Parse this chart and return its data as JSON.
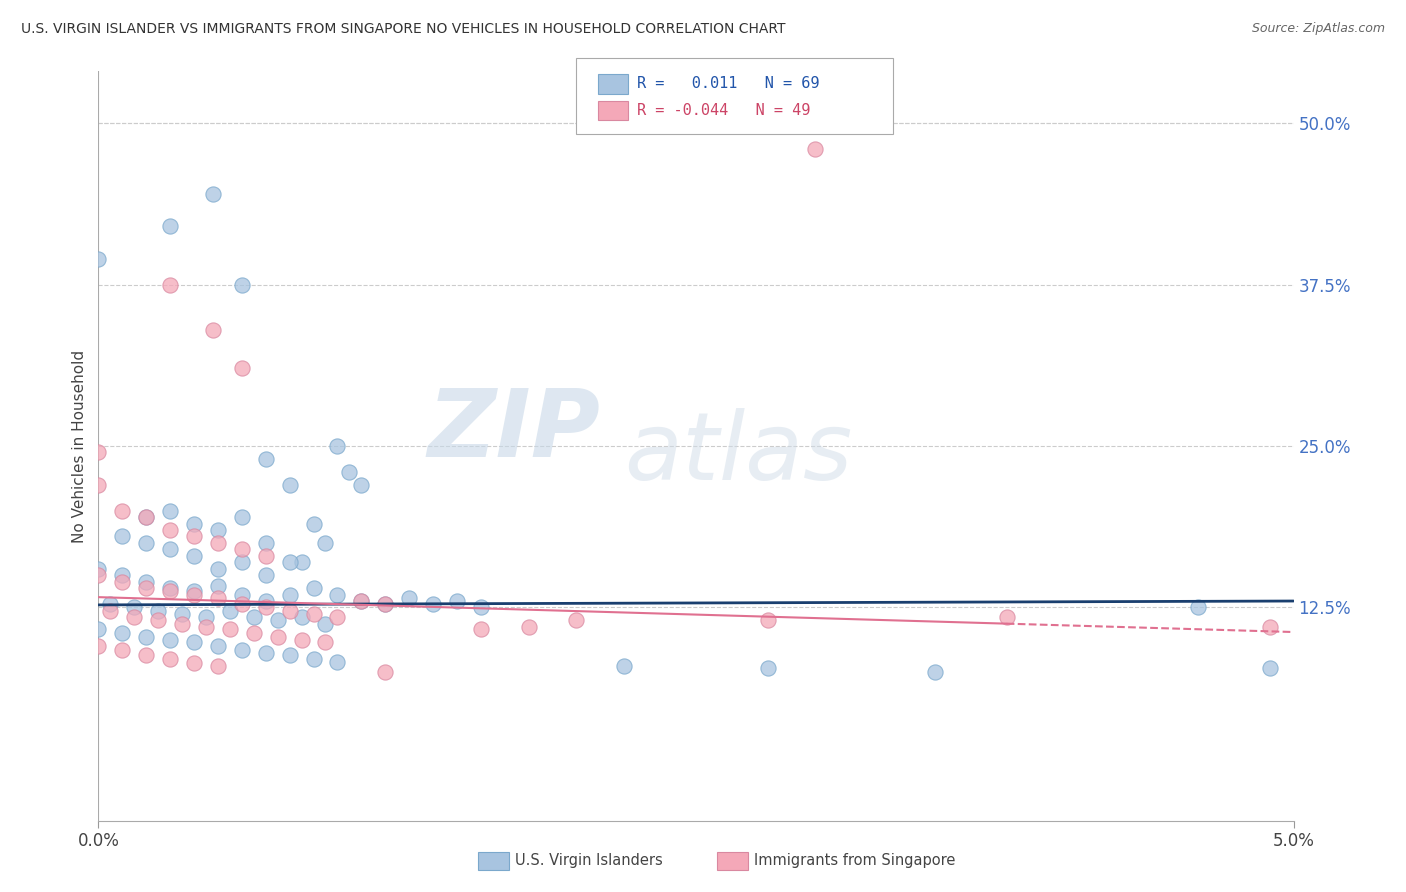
{
  "title": "U.S. VIRGIN ISLANDER VS IMMIGRANTS FROM SINGAPORE NO VEHICLES IN HOUSEHOLD CORRELATION CHART",
  "source": "Source: ZipAtlas.com",
  "ylabel": "No Vehicles in Household",
  "ytick_labels": [
    "12.5%",
    "25.0%",
    "37.5%",
    "50.0%"
  ],
  "ytick_values": [
    0.125,
    0.25,
    0.375,
    0.5
  ],
  "xmin": 0.0,
  "xmax": 0.05,
  "ymin": -0.04,
  "ymax": 0.54,
  "legend_label_blue": "U.S. Virgin Islanders",
  "legend_label_pink": "Immigrants from Singapore",
  "r_blue": 0.011,
  "n_blue": 69,
  "r_pink": -0.044,
  "n_pink": 49,
  "blue_color": "#a8c4e0",
  "pink_color": "#f4a8b8",
  "line_blue_color": "#1a3f6f",
  "line_pink_color": "#e07090",
  "watermark_zip": "ZIP",
  "watermark_atlas": "atlas",
  "blue_line_y0": 0.127,
  "blue_line_y1": 0.13,
  "pink_line_y0": 0.133,
  "pink_line_y1": 0.106,
  "blue_scatter": [
    [
      0.0,
      0.395
    ],
    [
      0.003,
      0.42
    ],
    [
      0.0048,
      0.445
    ],
    [
      0.007,
      0.24
    ],
    [
      0.006,
      0.375
    ],
    [
      0.008,
      0.22
    ],
    [
      0.009,
      0.19
    ],
    [
      0.01,
      0.25
    ],
    [
      0.0085,
      0.16
    ],
    [
      0.0095,
      0.175
    ],
    [
      0.0105,
      0.23
    ],
    [
      0.011,
      0.22
    ],
    [
      0.002,
      0.195
    ],
    [
      0.003,
      0.2
    ],
    [
      0.004,
      0.19
    ],
    [
      0.005,
      0.185
    ],
    [
      0.006,
      0.195
    ],
    [
      0.007,
      0.175
    ],
    [
      0.008,
      0.16
    ],
    [
      0.001,
      0.18
    ],
    [
      0.002,
      0.175
    ],
    [
      0.003,
      0.17
    ],
    [
      0.004,
      0.165
    ],
    [
      0.005,
      0.155
    ],
    [
      0.006,
      0.16
    ],
    [
      0.007,
      0.15
    ],
    [
      0.0,
      0.155
    ],
    [
      0.001,
      0.15
    ],
    [
      0.002,
      0.145
    ],
    [
      0.003,
      0.14
    ],
    [
      0.004,
      0.138
    ],
    [
      0.005,
      0.142
    ],
    [
      0.006,
      0.135
    ],
    [
      0.007,
      0.13
    ],
    [
      0.008,
      0.135
    ],
    [
      0.009,
      0.14
    ],
    [
      0.01,
      0.135
    ],
    [
      0.011,
      0.13
    ],
    [
      0.012,
      0.128
    ],
    [
      0.013,
      0.132
    ],
    [
      0.014,
      0.128
    ],
    [
      0.015,
      0.13
    ],
    [
      0.016,
      0.125
    ],
    [
      0.0005,
      0.128
    ],
    [
      0.0015,
      0.125
    ],
    [
      0.0025,
      0.122
    ],
    [
      0.0035,
      0.12
    ],
    [
      0.0045,
      0.118
    ],
    [
      0.0055,
      0.122
    ],
    [
      0.0065,
      0.118
    ],
    [
      0.0075,
      0.115
    ],
    [
      0.0085,
      0.118
    ],
    [
      0.0095,
      0.112
    ],
    [
      0.0,
      0.108
    ],
    [
      0.001,
      0.105
    ],
    [
      0.002,
      0.102
    ],
    [
      0.003,
      0.1
    ],
    [
      0.004,
      0.098
    ],
    [
      0.005,
      0.095
    ],
    [
      0.006,
      0.092
    ],
    [
      0.007,
      0.09
    ],
    [
      0.008,
      0.088
    ],
    [
      0.009,
      0.085
    ],
    [
      0.01,
      0.083
    ],
    [
      0.022,
      0.08
    ],
    [
      0.028,
      0.078
    ],
    [
      0.035,
      0.075
    ],
    [
      0.046,
      0.125
    ],
    [
      0.049,
      0.078
    ]
  ],
  "pink_scatter": [
    [
      0.0,
      0.245
    ],
    [
      0.003,
      0.375
    ],
    [
      0.0048,
      0.34
    ],
    [
      0.006,
      0.31
    ],
    [
      0.0,
      0.22
    ],
    [
      0.001,
      0.2
    ],
    [
      0.002,
      0.195
    ],
    [
      0.003,
      0.185
    ],
    [
      0.004,
      0.18
    ],
    [
      0.005,
      0.175
    ],
    [
      0.006,
      0.17
    ],
    [
      0.007,
      0.165
    ],
    [
      0.0,
      0.15
    ],
    [
      0.001,
      0.145
    ],
    [
      0.002,
      0.14
    ],
    [
      0.003,
      0.138
    ],
    [
      0.004,
      0.135
    ],
    [
      0.005,
      0.132
    ],
    [
      0.006,
      0.128
    ],
    [
      0.007,
      0.125
    ],
    [
      0.008,
      0.122
    ],
    [
      0.009,
      0.12
    ],
    [
      0.01,
      0.118
    ],
    [
      0.011,
      0.13
    ],
    [
      0.012,
      0.128
    ],
    [
      0.0005,
      0.122
    ],
    [
      0.0015,
      0.118
    ],
    [
      0.0025,
      0.115
    ],
    [
      0.0035,
      0.112
    ],
    [
      0.0045,
      0.11
    ],
    [
      0.0055,
      0.108
    ],
    [
      0.0065,
      0.105
    ],
    [
      0.0075,
      0.102
    ],
    [
      0.0085,
      0.1
    ],
    [
      0.0095,
      0.098
    ],
    [
      0.0,
      0.095
    ],
    [
      0.001,
      0.092
    ],
    [
      0.002,
      0.088
    ],
    [
      0.003,
      0.085
    ],
    [
      0.004,
      0.082
    ],
    [
      0.005,
      0.08
    ],
    [
      0.028,
      0.115
    ],
    [
      0.038,
      0.118
    ],
    [
      0.02,
      0.115
    ],
    [
      0.03,
      0.48
    ],
    [
      0.016,
      0.108
    ],
    [
      0.018,
      0.11
    ],
    [
      0.012,
      0.075
    ],
    [
      0.049,
      0.11
    ]
  ]
}
